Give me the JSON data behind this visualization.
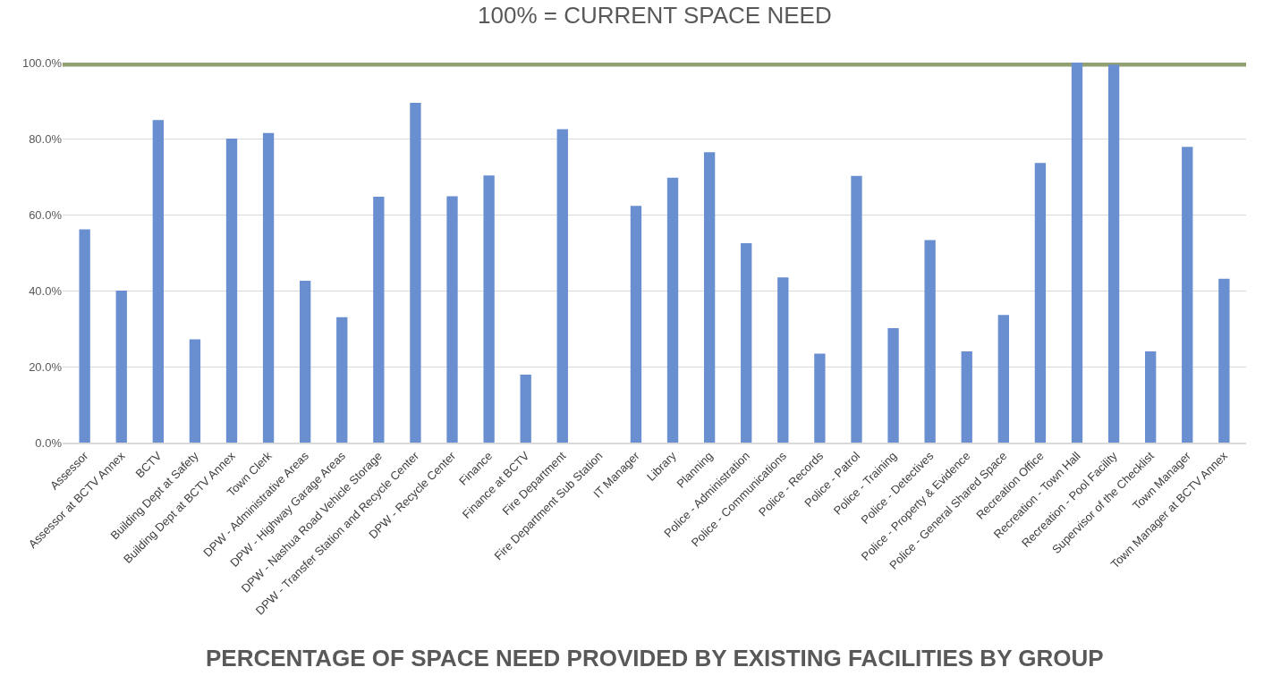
{
  "chart_data": {
    "type": "bar",
    "title": "PERCENTAGE OF SPACE NEED PROVIDED BY EXISTING FACILITIES BY GROUP",
    "categories": [
      "Assessor",
      "Assessor at BCTV Annex",
      "BCTV",
      "Building Dept at Safety",
      "Building Dept at BCTV Annex",
      "Town Clerk",
      "DPW - Administrative Areas",
      "DPW - Highway Garage Areas",
      "DPW - Nashua Road Vehicle Storage",
      "DPW - Transfer Station and Recycle Center",
      "DPW - Recycle Center",
      "Finance",
      "Finance at BCTV",
      "Fire Department",
      "Fire Department Sub Station",
      "IT Manager",
      "Library",
      "Planning",
      "Police - Administration",
      "Police - Communications",
      "Police - Records",
      "Police - Patrol",
      "Police - Training",
      "Police - Detectives",
      "Police - Property & Evidence",
      "Police - General Shared Space",
      "Recreation Office",
      "Recreation - Town Hall",
      "Recreation - Pool Facility",
      "Supervisor of the Checklist",
      "Town Manager",
      "Town Manager at BCTV Annex"
    ],
    "values": [
      56.1,
      40.0,
      84.9,
      27.2,
      80.0,
      81.5,
      42.6,
      33.0,
      64.7,
      89.4,
      64.8,
      70.3,
      17.9,
      82.5,
      null,
      62.3,
      69.7,
      76.4,
      52.5,
      43.5,
      23.4,
      70.2,
      30.1,
      53.3,
      24.0,
      33.6,
      73.6,
      100.0,
      99.5,
      24.0,
      77.8,
      43.1
    ],
    "color": "#6a8fd0",
    "ylim": [
      0,
      100
    ],
    "yticks": [
      {
        "value": 0,
        "label": "0.0%"
      },
      {
        "value": 20,
        "label": "20.0%"
      },
      {
        "value": 40,
        "label": "40.0%"
      },
      {
        "value": 60,
        "label": "60.0%"
      },
      {
        "value": 80,
        "label": "80.0%"
      },
      {
        "value": 100,
        "label": "100.0%"
      }
    ],
    "grid": "y",
    "legend": false,
    "ref_lines": [
      {
        "axis": "y",
        "value": 100,
        "label": "100% = CURRENT SPACE NEED",
        "color": "#8c9b6a"
      }
    ]
  }
}
